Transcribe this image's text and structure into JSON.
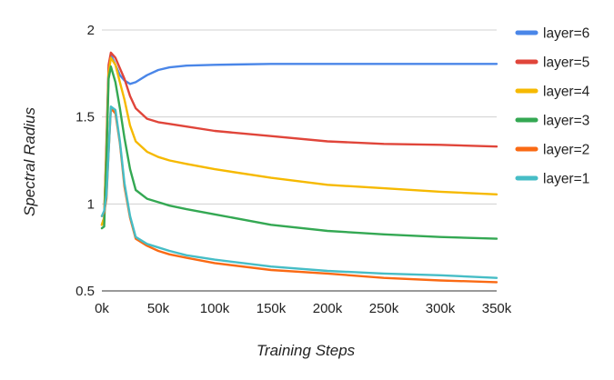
{
  "chart_data": {
    "type": "line",
    "xlabel": "Training Steps",
    "ylabel": "Spectral Radius",
    "xlim": [
      0,
      350000
    ],
    "ylim": [
      0.5,
      2
    ],
    "xticks": [
      0,
      50000,
      100000,
      150000,
      200000,
      250000,
      300000,
      350000
    ],
    "xtick_labels": [
      "0k",
      "50k",
      "100k",
      "150k",
      "200k",
      "250k",
      "300k",
      "350k"
    ],
    "yticks": [
      0.5,
      1,
      1.5,
      2
    ],
    "ytick_labels": [
      "0.5",
      "1",
      "1.5",
      "2"
    ],
    "grid": "horizontal",
    "legend_position": "right",
    "series": [
      {
        "name": "layer=6",
        "color": "#4a86e8",
        "x": [
          0,
          2000,
          4000,
          6000,
          8000,
          12000,
          16000,
          20000,
          25000,
          30000,
          40000,
          50000,
          60000,
          75000,
          100000,
          150000,
          200000,
          250000,
          300000,
          350000
        ],
        "y": [
          0.88,
          0.92,
          1.3,
          1.78,
          1.86,
          1.8,
          1.74,
          1.71,
          1.69,
          1.7,
          1.74,
          1.77,
          1.785,
          1.795,
          1.8,
          1.805,
          1.805,
          1.805,
          1.805,
          1.805
        ]
      },
      {
        "name": "layer=5",
        "color": "#e0453a",
        "x": [
          0,
          2000,
          4000,
          6000,
          8000,
          12000,
          16000,
          20000,
          25000,
          30000,
          40000,
          50000,
          60000,
          75000,
          100000,
          150000,
          200000,
          250000,
          300000,
          350000
        ],
        "y": [
          0.88,
          0.92,
          1.35,
          1.8,
          1.87,
          1.84,
          1.78,
          1.72,
          1.62,
          1.55,
          1.49,
          1.47,
          1.46,
          1.445,
          1.42,
          1.39,
          1.36,
          1.345,
          1.34,
          1.33
        ]
      },
      {
        "name": "layer=4",
        "color": "#f6b900",
        "x": [
          0,
          2000,
          4000,
          6000,
          8000,
          12000,
          16000,
          20000,
          25000,
          30000,
          40000,
          50000,
          60000,
          75000,
          100000,
          150000,
          200000,
          250000,
          300000,
          350000
        ],
        "y": [
          0.88,
          0.92,
          1.3,
          1.75,
          1.84,
          1.8,
          1.7,
          1.6,
          1.45,
          1.36,
          1.3,
          1.27,
          1.25,
          1.23,
          1.2,
          1.15,
          1.11,
          1.09,
          1.07,
          1.055
        ]
      },
      {
        "name": "layer=3",
        "color": "#34a853",
        "x": [
          0,
          2000,
          4000,
          6000,
          8000,
          12000,
          16000,
          20000,
          25000,
          30000,
          40000,
          50000,
          60000,
          75000,
          100000,
          150000,
          200000,
          250000,
          300000,
          350000
        ],
        "y": [
          0.86,
          0.87,
          1.25,
          1.72,
          1.79,
          1.7,
          1.55,
          1.38,
          1.2,
          1.08,
          1.03,
          1.01,
          0.99,
          0.97,
          0.94,
          0.88,
          0.845,
          0.825,
          0.81,
          0.8
        ]
      },
      {
        "name": "layer=2",
        "color": "#fa6a14",
        "x": [
          0,
          2000,
          4000,
          6000,
          8000,
          12000,
          16000,
          20000,
          25000,
          30000,
          40000,
          50000,
          60000,
          75000,
          100000,
          150000,
          200000,
          250000,
          300000,
          350000
        ],
        "y": [
          0.93,
          0.95,
          1.03,
          1.3,
          1.55,
          1.52,
          1.35,
          1.1,
          0.92,
          0.8,
          0.76,
          0.73,
          0.71,
          0.69,
          0.66,
          0.62,
          0.6,
          0.575,
          0.56,
          0.55
        ]
      },
      {
        "name": "layer=1",
        "color": "#46bdc6",
        "x": [
          0,
          2000,
          4000,
          6000,
          8000,
          12000,
          16000,
          20000,
          25000,
          30000,
          40000,
          50000,
          60000,
          75000,
          100000,
          150000,
          200000,
          250000,
          300000,
          350000
        ],
        "y": [
          0.93,
          0.96,
          1.05,
          1.3,
          1.56,
          1.54,
          1.36,
          1.12,
          0.93,
          0.81,
          0.77,
          0.75,
          0.73,
          0.705,
          0.68,
          0.64,
          0.615,
          0.6,
          0.59,
          0.575
        ]
      }
    ]
  }
}
